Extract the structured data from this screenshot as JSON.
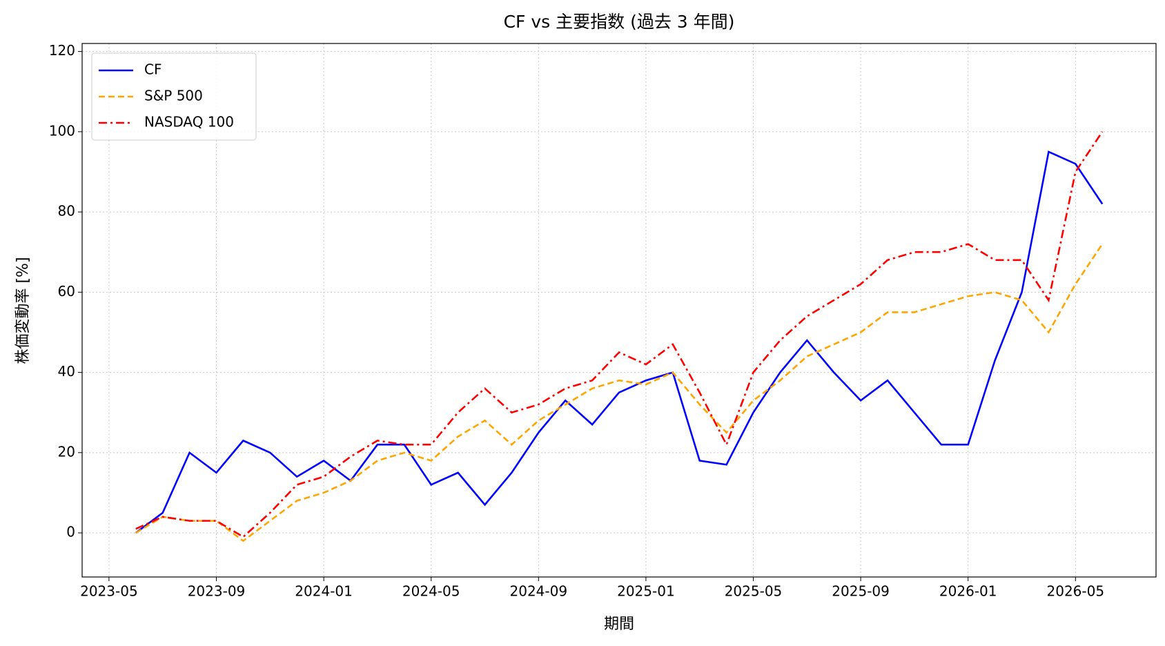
{
  "chart_data": {
    "type": "line",
    "title": "CF vs 主要指数 (過去 3 年間)",
    "x_label": "期間",
    "y_label": "株価変動率 [%]",
    "x": [
      "2023-06",
      "2023-07",
      "2023-08",
      "2023-09",
      "2023-10",
      "2023-11",
      "2023-12",
      "2024-01",
      "2024-02",
      "2024-03",
      "2024-04",
      "2024-05",
      "2024-06",
      "2024-07",
      "2024-08",
      "2024-09",
      "2024-10",
      "2024-11",
      "2024-12",
      "2025-01",
      "2025-02",
      "2025-03",
      "2025-04",
      "2025-05",
      "2025-06",
      "2025-07",
      "2025-08",
      "2025-09",
      "2025-10",
      "2025-11",
      "2025-12",
      "2026-01",
      "2026-02",
      "2026-03",
      "2026-04",
      "2026-05",
      "2026-06"
    ],
    "series": [
      {
        "name": "CF",
        "color": "#0000ff",
        "linestyle": "solid",
        "values": [
          0,
          5,
          20,
          15,
          23,
          20,
          14,
          18,
          13,
          22,
          22,
          12,
          15,
          7,
          15,
          25,
          33,
          27,
          35,
          38,
          40,
          18,
          17,
          30,
          40,
          48,
          40,
          33,
          38,
          30,
          22,
          22,
          43,
          60,
          95,
          92,
          82
        ]
      },
      {
        "name": "S&P 500",
        "color": "#ffa500",
        "linestyle": "dashed",
        "values": [
          0,
          4,
          3,
          3,
          -2,
          3,
          8,
          10,
          13,
          18,
          20,
          18,
          24,
          28,
          22,
          28,
          32,
          36,
          38,
          37,
          40,
          32,
          25,
          33,
          38,
          44,
          47,
          50,
          55,
          55,
          57,
          59,
          60,
          58,
          50,
          62,
          72
        ]
      },
      {
        "name": "NASDAQ 100",
        "color": "#ff0000",
        "linestyle": "dashdot",
        "values": [
          1,
          4,
          3,
          3,
          -1,
          5,
          12,
          14,
          19,
          23,
          22,
          22,
          30,
          36,
          30,
          32,
          36,
          38,
          45,
          42,
          47,
          35,
          22,
          40,
          48,
          54,
          58,
          62,
          68,
          70,
          70,
          72,
          68,
          68,
          58,
          90,
          100
        ]
      }
    ],
    "xlim": [
      "2023-04",
      "2026-08"
    ],
    "xticks": [
      "2023-05",
      "2023-09",
      "2024-01",
      "2024-05",
      "2024-09",
      "2025-01",
      "2025-05",
      "2025-09",
      "2026-01",
      "2026-05"
    ],
    "ylim": [
      -11,
      122
    ],
    "yticks": [
      0,
      20,
      40,
      60,
      80,
      100,
      120
    ],
    "grid": true,
    "legend": "upper left"
  }
}
